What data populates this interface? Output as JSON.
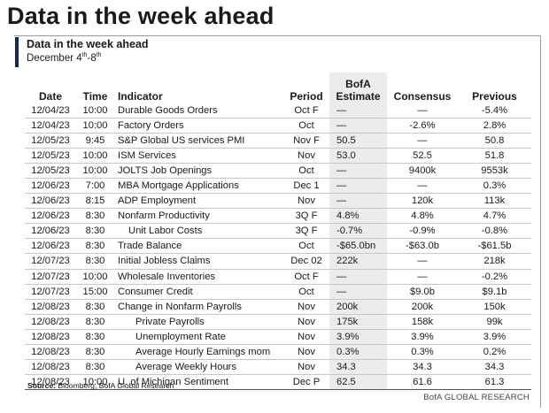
{
  "page_title": "Data in the week ahead",
  "panel": {
    "title": "Data in the week ahead",
    "date_prefix": "December 4",
    "date_sup1": "th",
    "date_mid": "-8",
    "date_sup2": "th"
  },
  "table": {
    "headers": {
      "date": "Date",
      "time": "Time",
      "indicator": "Indicator",
      "period": "Period",
      "bofa_line1": "BofA",
      "bofa_line2": "Estimate",
      "consensus": "Consensus",
      "previous": "Previous"
    },
    "rows": [
      {
        "date": "12/04/23",
        "time": "10:00",
        "indicator": "Durable Goods Orders",
        "period": "Oct F",
        "bofa": "—",
        "consensus": "—",
        "previous": "-5.4%"
      },
      {
        "date": "12/04/23",
        "time": "10:00",
        "indicator": "Factory Orders",
        "period": "Oct",
        "bofa": "—",
        "consensus": "-2.6%",
        "previous": "2.8%"
      },
      {
        "date": "12/05/23",
        "time": "9:45",
        "indicator": "S&P Global US services PMI",
        "period": "Nov F",
        "bofa": "50.5",
        "consensus": "—",
        "previous": "50.8"
      },
      {
        "date": "12/05/23",
        "time": "10:00",
        "indicator": "ISM Services",
        "period": "Nov",
        "bofa": "53.0",
        "consensus": "52.5",
        "previous": "51.8"
      },
      {
        "date": "12/05/23",
        "time": "10:00",
        "indicator": "JOLTS Job Openings",
        "period": "Oct",
        "bofa": "—",
        "consensus": "9400k",
        "previous": "9553k"
      },
      {
        "date": "12/06/23",
        "time": "7:00",
        "indicator": "MBA Mortgage Applications",
        "period": "Dec 1",
        "bofa": "—",
        "consensus": "—",
        "previous": "0.3%"
      },
      {
        "date": "12/06/23",
        "time": "8:15",
        "indicator": "ADP Employment",
        "period": "Nov",
        "bofa": "—",
        "consensus": "120k",
        "previous": "113k"
      },
      {
        "date": "12/06/23",
        "time": "8:30",
        "indicator": "Nonfarm Productivity",
        "period": "3Q F",
        "bofa": "4.8%",
        "consensus": "4.8%",
        "previous": "4.7%"
      },
      {
        "date": "12/06/23",
        "time": "8:30",
        "indicator": "Unit Labor Costs",
        "period": "3Q F",
        "bofa": "-0.7%",
        "consensus": "-0.9%",
        "previous": "-0.8%",
        "indent": 1
      },
      {
        "date": "12/06/23",
        "time": "8:30",
        "indicator": "Trade Balance",
        "period": "Oct",
        "bofa": "-$65.0bn",
        "consensus": "-$63.0b",
        "previous": "-$61.5b"
      },
      {
        "date": "12/07/23",
        "time": "8:30",
        "indicator": "Initial Jobless Claims",
        "period": "Dec 02",
        "bofa": "222k",
        "consensus": "—",
        "previous": "218k"
      },
      {
        "date": "12/07/23",
        "time": "10:00",
        "indicator": "Wholesale Inventories",
        "period": "Oct F",
        "bofa": "—",
        "consensus": "—",
        "previous": "-0.2%"
      },
      {
        "date": "12/07/23",
        "time": "15:00",
        "indicator": "Consumer Credit",
        "period": "Oct",
        "bofa": "—",
        "consensus": "$9.0b",
        "previous": "$9.1b"
      },
      {
        "date": "12/08/23",
        "time": "8:30",
        "indicator": "Change in Nonfarm Payrolls",
        "period": "Nov",
        "bofa": "200k",
        "consensus": "200k",
        "previous": "150k"
      },
      {
        "date": "12/08/23",
        "time": "8:30",
        "indicator": "Private Payrolls",
        "period": "Nov",
        "bofa": "175k",
        "consensus": "158k",
        "previous": "99k",
        "indent": 2
      },
      {
        "date": "12/08/23",
        "time": "8:30",
        "indicator": "Unemployment Rate",
        "period": "Nov",
        "bofa": "3.9%",
        "consensus": "3.9%",
        "previous": "3.9%",
        "indent": 2
      },
      {
        "date": "12/08/23",
        "time": "8:30",
        "indicator": "Average Hourly Earnings mom",
        "period": "Nov",
        "bofa": "0.3%",
        "consensus": "0.3%",
        "previous": "0.2%",
        "indent": 2
      },
      {
        "date": "12/08/23",
        "time": "8:30",
        "indicator": "Average Weekly Hours",
        "period": "Nov",
        "bofa": "34.3",
        "consensus": "34.3",
        "previous": "34.3",
        "indent": 2
      },
      {
        "date": "12/08/23",
        "time": "10:00",
        "indicator": "U. of Michigan Sentiment",
        "period": "Dec P",
        "bofa": "62.5",
        "consensus": "61.6",
        "previous": "61.3"
      }
    ]
  },
  "source": {
    "label": "Source:",
    "text": "Bloomberg, BofA Global Research"
  },
  "brand": "BofA GLOBAL RESEARCH",
  "colors": {
    "accent_bar": "#13265d",
    "estimate_column_bg": "#ececec"
  }
}
